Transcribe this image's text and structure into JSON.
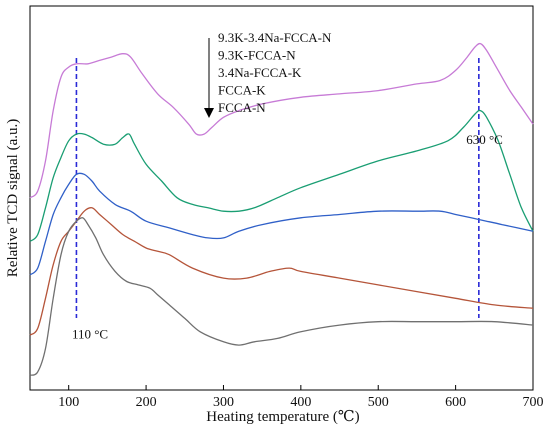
{
  "chart_data": {
    "type": "line",
    "title": "",
    "xlabel": "Heating temperature (℃)",
    "ylabel": "Relative TCD signal (a.u.)",
    "xlim": [
      50,
      700
    ],
    "xticks": [
      100,
      200,
      300,
      400,
      500,
      600,
      700
    ],
    "ylim": [
      0,
      1
    ],
    "yticks_shown": false,
    "grid": false,
    "legend": {
      "placement": "top-center",
      "arrow": "down",
      "entries": [
        "9.3K-3.4Na-FCCA-N",
        "9.3K-FCCA-N",
        "3.4Na-FCCA-K",
        "FCCA-K",
        "FCCA-N"
      ]
    },
    "reference_lines": [
      {
        "x": 110,
        "color": "#2a2ad6",
        "style": "dashed"
      },
      {
        "x": 630,
        "color": "#2a2ad6",
        "style": "dashed"
      }
    ],
    "annotations": [
      {
        "text": "110 °C",
        "x": 112,
        "y": 0.13
      },
      {
        "text": "630 °C",
        "x": 630,
        "y": 0.71
      }
    ],
    "series": [
      {
        "color": "#c77bd6",
        "x": [
          50,
          60,
          70,
          80,
          90,
          100,
          110,
          125,
          140,
          155,
          170,
          180,
          195,
          215,
          235,
          255,
          265,
          275,
          285,
          300,
          320,
          350,
          400,
          450,
          500,
          550,
          580,
          600,
          615,
          625,
          632,
          640,
          655,
          670,
          685,
          700
        ],
        "y": [
          0.55,
          0.57,
          0.66,
          0.81,
          0.91,
          0.94,
          0.95,
          0.95,
          0.96,
          0.97,
          0.98,
          0.97,
          0.92,
          0.86,
          0.82,
          0.77,
          0.74,
          0.74,
          0.76,
          0.79,
          0.81,
          0.83,
          0.85,
          0.86,
          0.87,
          0.89,
          0.9,
          0.93,
          0.97,
          1.0,
          1.01,
          0.99,
          0.93,
          0.87,
          0.82,
          0.77
        ]
      },
      {
        "color": "#1a9e73",
        "x": [
          50,
          60,
          70,
          80,
          90,
          100,
          110,
          120,
          130,
          145,
          160,
          170,
          178,
          185,
          200,
          220,
          240,
          260,
          280,
          300,
          320,
          340,
          370,
          400,
          450,
          500,
          550,
          590,
          610,
          625,
          632,
          640,
          655,
          670,
          685,
          700
        ],
        "y": [
          0.42,
          0.44,
          0.52,
          0.61,
          0.67,
          0.72,
          0.74,
          0.74,
          0.73,
          0.71,
          0.71,
          0.73,
          0.74,
          0.71,
          0.65,
          0.6,
          0.55,
          0.53,
          0.52,
          0.51,
          0.51,
          0.52,
          0.55,
          0.58,
          0.62,
          0.66,
          0.69,
          0.72,
          0.76,
          0.8,
          0.81,
          0.79,
          0.72,
          0.62,
          0.52,
          0.45
        ]
      },
      {
        "color": "#3060c8",
        "x": [
          50,
          60,
          70,
          80,
          90,
          100,
          110,
          120,
          130,
          140,
          160,
          180,
          200,
          230,
          260,
          280,
          300,
          320,
          350,
          400,
          450,
          500,
          550,
          580,
          600,
          620,
          640,
          660,
          680,
          700
        ],
        "y": [
          0.32,
          0.34,
          0.42,
          0.5,
          0.55,
          0.59,
          0.62,
          0.62,
          0.6,
          0.57,
          0.53,
          0.51,
          0.48,
          0.46,
          0.44,
          0.43,
          0.43,
          0.45,
          0.47,
          0.49,
          0.5,
          0.51,
          0.51,
          0.51,
          0.5,
          0.49,
          0.48,
          0.47,
          0.46,
          0.45
        ]
      },
      {
        "color": "#b5553a",
        "x": [
          50,
          60,
          70,
          80,
          90,
          100,
          110,
          120,
          130,
          140,
          155,
          170,
          185,
          200,
          215,
          230,
          260,
          300,
          330,
          360,
          385,
          400,
          450,
          500,
          550,
          600,
          650,
          700
        ],
        "y": [
          0.14,
          0.16,
          0.25,
          0.35,
          0.42,
          0.45,
          0.48,
          0.51,
          0.52,
          0.5,
          0.47,
          0.44,
          0.42,
          0.4,
          0.39,
          0.38,
          0.34,
          0.31,
          0.31,
          0.33,
          0.34,
          0.33,
          0.31,
          0.29,
          0.27,
          0.25,
          0.23,
          0.22
        ]
      },
      {
        "color": "#707070",
        "x": [
          50,
          60,
          70,
          80,
          90,
          100,
          110,
          118,
          125,
          135,
          145,
          160,
          175,
          190,
          205,
          215,
          230,
          250,
          270,
          300,
          320,
          340,
          370,
          400,
          450,
          500,
          550,
          600,
          650,
          700
        ],
        "y": [
          0.02,
          0.03,
          0.1,
          0.25,
          0.38,
          0.45,
          0.48,
          0.49,
          0.47,
          0.43,
          0.38,
          0.33,
          0.3,
          0.29,
          0.28,
          0.26,
          0.23,
          0.19,
          0.15,
          0.12,
          0.11,
          0.12,
          0.13,
          0.15,
          0.17,
          0.18,
          0.18,
          0.18,
          0.18,
          0.17
        ]
      }
    ]
  }
}
